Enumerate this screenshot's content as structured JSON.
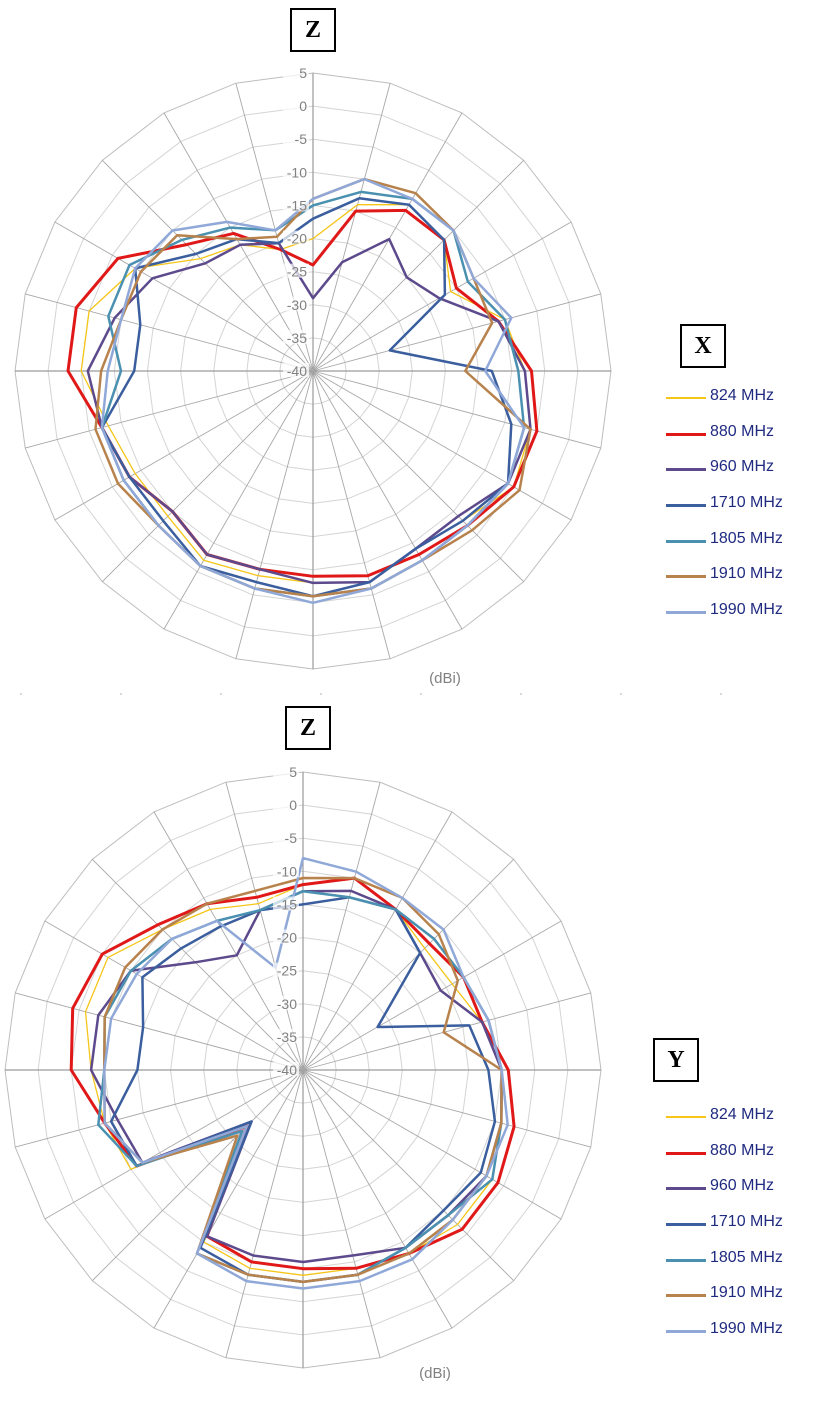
{
  "chart_data": [
    {
      "type": "polar-line",
      "panel": 1,
      "top_axis_label": "Z",
      "side_axis_label": "X",
      "unit_label": "(dBi)",
      "r_ticks": [
        "5",
        "0",
        "-5",
        "-10",
        "-15",
        "-20",
        "-25",
        "-30",
        "-35",
        "-40"
      ],
      "r_range": [
        -40,
        5
      ],
      "angle_step_deg": 15,
      "grid": true,
      "legend_position": "right",
      "series": [
        {
          "name": "824 MHz",
          "color": "#f5c518",
          "width": 1.3,
          "values": [
            -20,
            -14,
            -11,
            -12,
            -16,
            -10,
            -8,
            -6,
            -5,
            -8,
            -9,
            -7,
            -8,
            -8,
            -7,
            -9,
            -9,
            -8,
            -5,
            -5,
            -9,
            -16,
            -18,
            -21
          ]
        },
        {
          "name": "880 MHz",
          "color": "#e01818",
          "width": 3,
          "values": [
            -24,
            -15,
            -12,
            -12,
            -15,
            -11,
            -7,
            -5,
            -5,
            -7,
            -8,
            -8,
            -9,
            -9,
            -8,
            -10,
            -8,
            -7,
            -3,
            -3,
            -6,
            -13,
            -16,
            -21
          ]
        },
        {
          "name": "960 MHz",
          "color": "#5c4a8c",
          "width": 2.5,
          "values": [
            -29,
            -23,
            -17,
            -20,
            -18,
            -11,
            -8,
            -6,
            -6,
            -9,
            -9,
            -7,
            -8,
            -9,
            -8,
            -10,
            -8,
            -7,
            -6,
            -9,
            -12,
            -17,
            -18,
            -20
          ]
        },
        {
          "name": "1710 MHz",
          "color": "#3a5e9e",
          "width": 2.5,
          "values": [
            -17,
            -13,
            -11,
            -12,
            -17,
            -28,
            -13,
            -9,
            -6,
            -8,
            -9,
            -7,
            -6,
            -7,
            -6,
            -8,
            -8,
            -7,
            -13,
            -13,
            -9,
            -15,
            -17,
            -20
          ]
        },
        {
          "name": "1805 MHz",
          "color": "#4a90b0",
          "width": 2.5,
          "values": [
            -15,
            -12,
            -10,
            -10,
            -13,
            -10,
            -9,
            -7,
            -6,
            -7,
            -7,
            -6,
            -6,
            -6,
            -6,
            -7,
            -7,
            -7,
            -11,
            -8,
            -8,
            -12,
            -15,
            -18
          ]
        },
        {
          "name": "1910 MHz",
          "color": "#b8824c",
          "width": 2.5,
          "values": [
            -14,
            -10,
            -9,
            -10,
            -12,
            -12,
            -17,
            -6,
            -4,
            -6,
            -7,
            -6,
            -6,
            -6,
            -6,
            -7,
            -6,
            -6,
            -8,
            -10,
            -10,
            -11,
            -17,
            -19
          ]
        },
        {
          "name": "1990 MHz",
          "color": "#90a8d8",
          "width": 2.5,
          "values": [
            -14,
            -10,
            -10,
            -10,
            -12,
            -9,
            -14,
            -7,
            -6,
            -7,
            -7,
            -6,
            -5,
            -6,
            -6,
            -7,
            -7,
            -7,
            -9,
            -10,
            -9,
            -10,
            -14,
            -18
          ]
        }
      ]
    },
    {
      "type": "polar-line",
      "panel": 2,
      "top_axis_label": "Z",
      "side_axis_label": "Y",
      "unit_label": "(dBi)",
      "r_ticks": [
        "5",
        "0",
        "-5",
        "-10",
        "-15",
        "-20",
        "-25",
        "-30",
        "-35",
        "-40"
      ],
      "r_range": [
        -40,
        5
      ],
      "angle_step_deg": 15,
      "grid": true,
      "legend_position": "right",
      "series": [
        {
          "name": "824 MHz",
          "color": "#f5c518",
          "width": 1.3,
          "values": [
            -12,
            -10,
            -12,
            -14,
            -14,
            -12,
            -10,
            -9,
            -7,
            -7,
            -8,
            -9,
            -9,
            -9,
            -10,
            -29,
            -10,
            -9,
            -8,
            -6,
            -6,
            -10,
            -12,
            -14
          ]
        },
        {
          "name": "880 MHz",
          "color": "#e01818",
          "width": 3,
          "values": [
            -12,
            -10,
            -12,
            -13,
            -12,
            -12,
            -9,
            -7,
            -6,
            -6,
            -8,
            -9,
            -10,
            -10,
            -11,
            -28,
            -11,
            -9,
            -5,
            -4,
            -5,
            -9,
            -11,
            -13
          ]
        },
        {
          "name": "960 MHz",
          "color": "#5c4a8c",
          "width": 2.5,
          "values": [
            -13,
            -12,
            -12,
            -15,
            -16,
            -12,
            -10,
            -9,
            -8,
            -9,
            -9,
            -11,
            -11,
            -11,
            -11,
            -29,
            -12,
            -11,
            -8,
            -8,
            -10,
            -17,
            -20,
            -15
          ]
        },
        {
          "name": "1710 MHz",
          "color": "#3a5e9e",
          "width": 2.5,
          "values": [
            -15,
            -13,
            -12,
            -15,
            -27,
            -14,
            -12,
            -10,
            -9,
            -10,
            -9,
            -8,
            -8,
            -8,
            -9,
            -29,
            -11,
            -10,
            -15,
            -15,
            -12,
            -14,
            -15,
            -15
          ]
        },
        {
          "name": "1805 MHz",
          "color": "#4a90b0",
          "width": 2.5,
          "values": [
            -13,
            -13,
            -12,
            -12,
            -12,
            -11,
            -10,
            -9,
            -7,
            -9,
            -9,
            -8,
            -8,
            -8,
            -8,
            -27,
            -11,
            -8,
            -10,
            -9,
            -10,
            -12,
            -14,
            -15
          ]
        },
        {
          "name": "1910 MHz",
          "color": "#b8824c",
          "width": 2.5,
          "values": [
            -11,
            -10,
            -10,
            -11,
            -13,
            -18,
            -10,
            -9,
            -8,
            -8,
            -8,
            -8,
            -8,
            -8,
            -8,
            -26,
            -12,
            -9,
            -10,
            -9,
            -9,
            -10,
            -11,
            -12
          ]
        },
        {
          "name": "1990 MHz",
          "color": "#90a8d8",
          "width": 2.5,
          "values": [
            -8,
            -9,
            -10,
            -10,
            -12,
            -11,
            -10,
            -8,
            -8,
            -8,
            -7,
            -7,
            -7,
            -7,
            -8,
            -28,
            -12,
            -9,
            -10,
            -10,
            -11,
            -12,
            -14,
            -24
          ]
        }
      ]
    }
  ]
}
